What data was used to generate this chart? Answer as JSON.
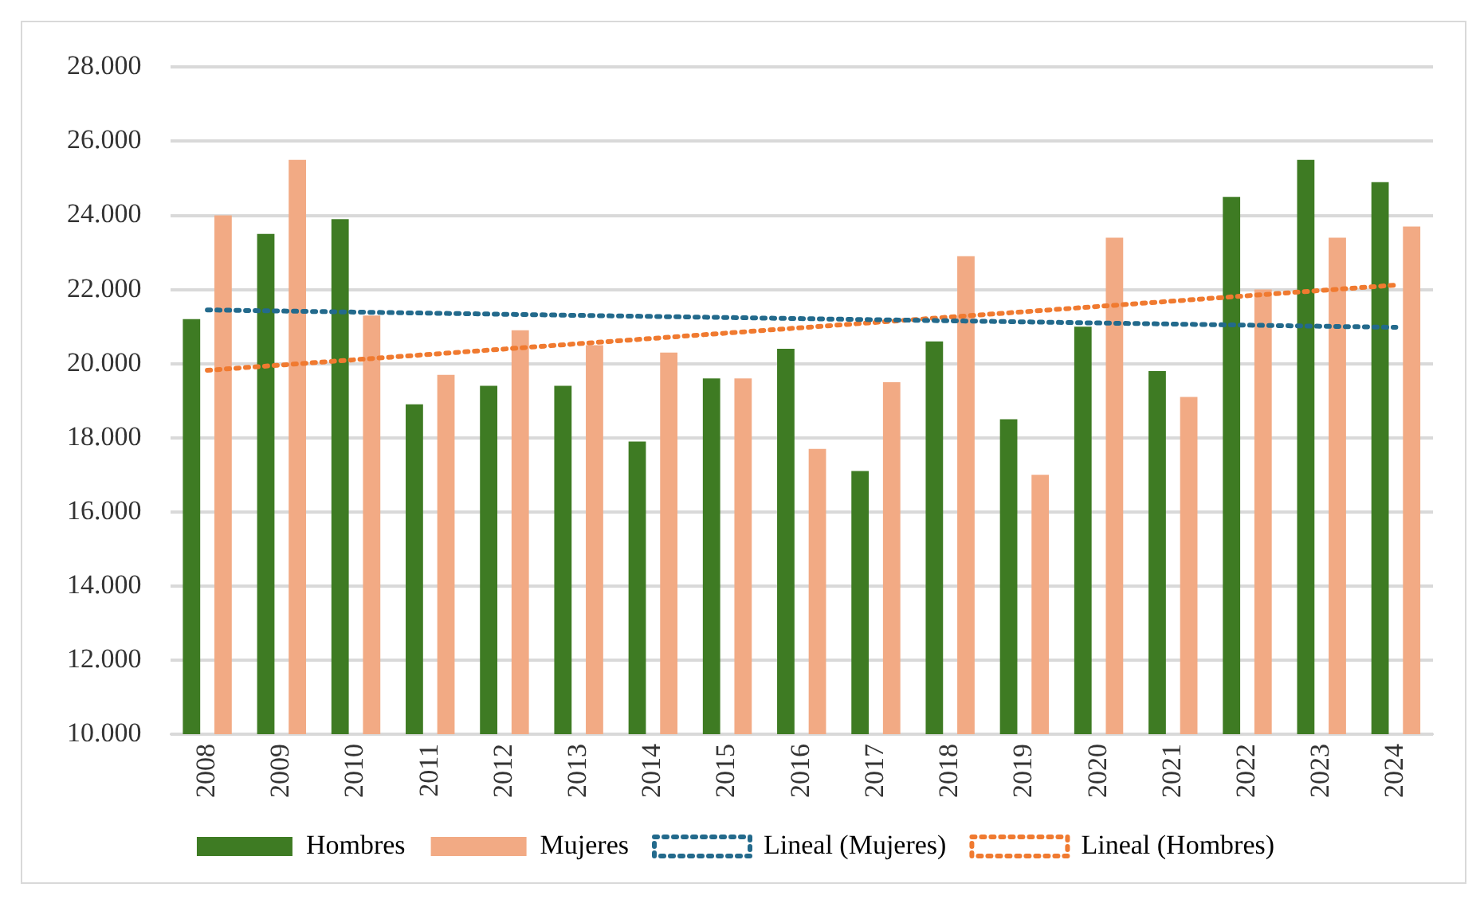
{
  "chart_data": {
    "type": "bar",
    "categories": [
      "2008",
      "2009",
      "2010",
      "2011",
      "2012",
      "2013",
      "2014",
      "2015",
      "2016",
      "2017",
      "2018",
      "2019",
      "2020",
      "2021",
      "2022",
      "2023",
      "2024"
    ],
    "series": [
      {
        "name": "Hombres",
        "color": "#3e7b23",
        "values": [
          21200,
          23500,
          23900,
          18900,
          19400,
          19400,
          17900,
          19600,
          20400,
          17100,
          20600,
          18500,
          21000,
          19800,
          24500,
          25500,
          24900
        ]
      },
      {
        "name": "Mujeres",
        "color": "#f2aa84",
        "values": [
          24000,
          25500,
          21300,
          19700,
          20900,
          20500,
          20300,
          19600,
          17700,
          19500,
          22900,
          17000,
          23400,
          19100,
          22000,
          23400,
          23700
        ]
      },
      {
        "name": "Lineal (Mujeres)",
        "type": "line",
        "color": "#236a8c",
        "values": [
          21450,
          null,
          null,
          null,
          null,
          null,
          null,
          null,
          null,
          null,
          null,
          null,
          null,
          null,
          null,
          null,
          20980
        ]
      },
      {
        "name": "Lineal (Hombres)",
        "type": "line",
        "color": "#f07a30",
        "values": [
          19820,
          null,
          null,
          null,
          null,
          null,
          null,
          null,
          null,
          null,
          null,
          null,
          null,
          null,
          null,
          null,
          22120
        ]
      }
    ],
    "ylim": [
      10000,
      28000
    ],
    "yticks": [
      {
        "value": 10000,
        "label": "10.000"
      },
      {
        "value": 12000,
        "label": "12.000"
      },
      {
        "value": 14000,
        "label": "14.000"
      },
      {
        "value": 16000,
        "label": "16.000"
      },
      {
        "value": 18000,
        "label": "18.000"
      },
      {
        "value": 20000,
        "label": "20.000"
      },
      {
        "value": 22000,
        "label": "22.000"
      },
      {
        "value": 24000,
        "label": "24.000"
      },
      {
        "value": 26000,
        "label": "26.000"
      },
      {
        "value": 28000,
        "label": "28.000"
      }
    ],
    "grid": "y",
    "legend": "bottom",
    "line_style": "dotted",
    "marker": "none"
  }
}
